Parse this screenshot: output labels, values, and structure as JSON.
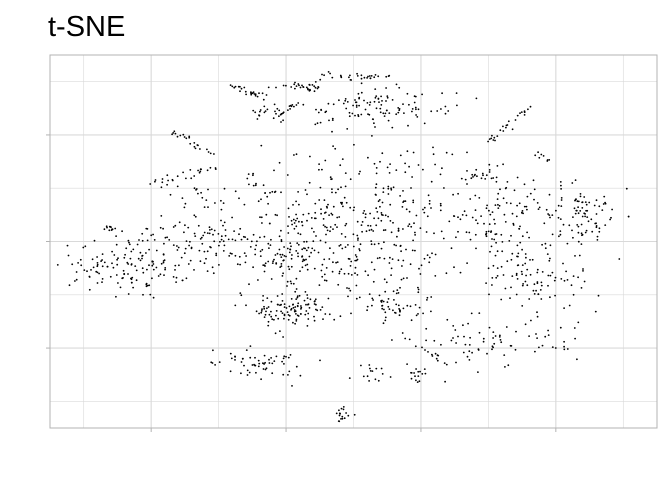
{
  "chart_data": {
    "type": "scatter",
    "title": "t-SNE",
    "xlabel": "",
    "ylabel": "",
    "xlim": [
      -45,
      45
    ],
    "ylim": [
      -35,
      35
    ],
    "x_major_ticks": [
      -30,
      -10,
      10,
      30
    ],
    "x_minor_ticks": [
      -40,
      -20,
      0,
      20,
      40
    ],
    "y_major_ticks": [
      -20,
      0,
      20
    ],
    "y_minor_ticks": [
      -30,
      -10,
      10,
      30
    ],
    "tick_labels_shown": false,
    "grid": true,
    "background": "#ffffff",
    "grid_color": "#d9d9d9",
    "axis_color": "#b3b3b3",
    "point_color": "#000000",
    "seed": 7,
    "clusters": [
      {
        "n": 220,
        "cx": 0,
        "cy": 5,
        "sx": 8,
        "sy": 7
      },
      {
        "n": 120,
        "cx": 8,
        "cy": 0,
        "sx": 7,
        "sy": 7
      },
      {
        "n": 90,
        "cx": -6,
        "cy": -4,
        "sx": 5,
        "sy": 4
      },
      {
        "n": 120,
        "cx": 3,
        "cy": 25,
        "sx": 6,
        "sy": 2
      },
      {
        "n": 15,
        "cx": -13.5,
        "cy": 24,
        "sx": 1.5,
        "sy": 0.8
      },
      {
        "n": 30,
        "cx": -8,
        "cy": 29,
        "sx": 2,
        "sy": 0.4
      },
      {
        "n": 15,
        "cx": -14,
        "cy": 10,
        "sx": 1.5,
        "sy": 1.5
      },
      {
        "n": 130,
        "cx": -33,
        "cy": -5,
        "sx": 5,
        "sy": 2.5
      },
      {
        "n": 130,
        "cx": -20,
        "cy": 0,
        "sx": 7,
        "sy": 2.5
      },
      {
        "n": 100,
        "cx": -9,
        "cy": -13,
        "sx": 3,
        "sy": 2
      },
      {
        "n": 50,
        "cx": 6,
        "cy": -12,
        "sx": 2,
        "sy": 2
      },
      {
        "n": 110,
        "cx": 22,
        "cy": 4,
        "sx": 4,
        "sy": 5
      },
      {
        "n": 90,
        "cx": 34,
        "cy": 5,
        "sx": 3,
        "sy": 3
      },
      {
        "n": 80,
        "cx": 28,
        "cy": -7,
        "sx": 4,
        "sy": 3
      },
      {
        "n": 50,
        "cx": 19,
        "cy": -19,
        "sx": 3,
        "sy": 2
      },
      {
        "n": 60,
        "cx": -15,
        "cy": -23,
        "sx": 4,
        "sy": 1.5
      },
      {
        "n": 20,
        "cx": -1.5,
        "cy": -32.5,
        "sx": 0.8,
        "sy": 1
      },
      {
        "n": 25,
        "cx": -23,
        "cy": 9,
        "sx": 3,
        "sy": 1.5
      },
      {
        "n": 15,
        "cx": 3,
        "cy": -25,
        "sx": 2,
        "sy": 1
      },
      {
        "n": 20,
        "cx": 11,
        "cy": -20,
        "sx": 2,
        "sy": 2
      },
      {
        "n": 20,
        "cx": 30,
        "cy": -18,
        "sx": 3,
        "sy": 1.5
      }
    ],
    "segments": [
      {
        "n": 25,
        "x1": -18,
        "y1": 29,
        "x2": -13,
        "y2": 27,
        "jitter": 0.4
      },
      {
        "n": 22,
        "x1": -27,
        "y1": 21,
        "x2": -21,
        "y2": 16,
        "jitter": 0.4
      },
      {
        "n": 20,
        "x1": -29,
        "y1": 11,
        "x2": -20,
        "y2": 14,
        "jitter": 0.5
      },
      {
        "n": 30,
        "x1": -5,
        "y1": 31,
        "x2": 5,
        "y2": 31,
        "jitter": 0.4
      },
      {
        "n": 15,
        "x1": -12,
        "y1": 23,
        "x2": -8,
        "y2": 26,
        "jitter": 0.3
      },
      {
        "n": 25,
        "x1": 20,
        "y1": 19,
        "x2": 26,
        "y2": 25,
        "jitter": 0.4
      },
      {
        "n": 22,
        "x1": -10,
        "y1": 2,
        "x2": -4,
        "y2": 6,
        "jitter": 0.5
      },
      {
        "n": 12,
        "x1": -37,
        "y1": 3,
        "x2": -35,
        "y2": 2,
        "jitter": 0.3
      },
      {
        "n": 15,
        "x1": 17,
        "y1": 13,
        "x2": 20,
        "y2": 12,
        "jitter": 0.5
      },
      {
        "n": 8,
        "x1": 27,
        "y1": 17,
        "x2": 29,
        "y2": 15,
        "jitter": 0.5
      },
      {
        "n": 20,
        "x1": -13,
        "y1": -5,
        "x2": -7,
        "y2": -1,
        "jitter": 0.6
      },
      {
        "n": 15,
        "x1": 9,
        "y1": -26,
        "x2": 10,
        "y2": -24,
        "jitter": 0.5
      }
    ]
  }
}
